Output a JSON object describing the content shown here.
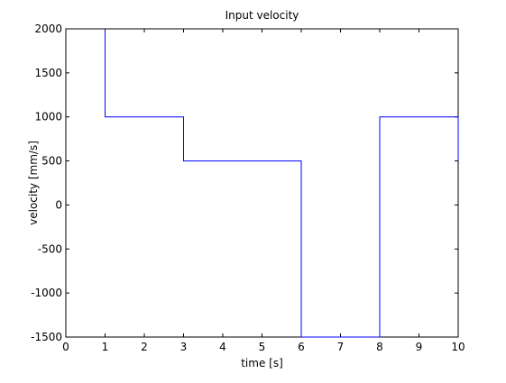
{
  "chart_data": {
    "type": "line",
    "title": "Input velocity",
    "xlabel": "time [s]",
    "ylabel": "velocity [mm/s]",
    "xlim": [
      0,
      10
    ],
    "ylim": [
      -1500,
      2000
    ],
    "xticks": [
      0,
      1,
      2,
      3,
      4,
      5,
      6,
      7,
      8,
      9,
      10
    ],
    "yticks": [
      -1500,
      -1000,
      -500,
      0,
      500,
      1000,
      1500,
      2000
    ],
    "grid": false,
    "legend": "none",
    "series": [
      {
        "color": "#0000ff",
        "x": [
          1,
          1,
          3,
          3,
          6,
          6,
          8,
          8,
          10,
          10
        ],
        "y": [
          2000,
          1000,
          1000,
          500,
          500,
          -1500,
          -1500,
          1000,
          1000,
          500
        ]
      }
    ]
  }
}
